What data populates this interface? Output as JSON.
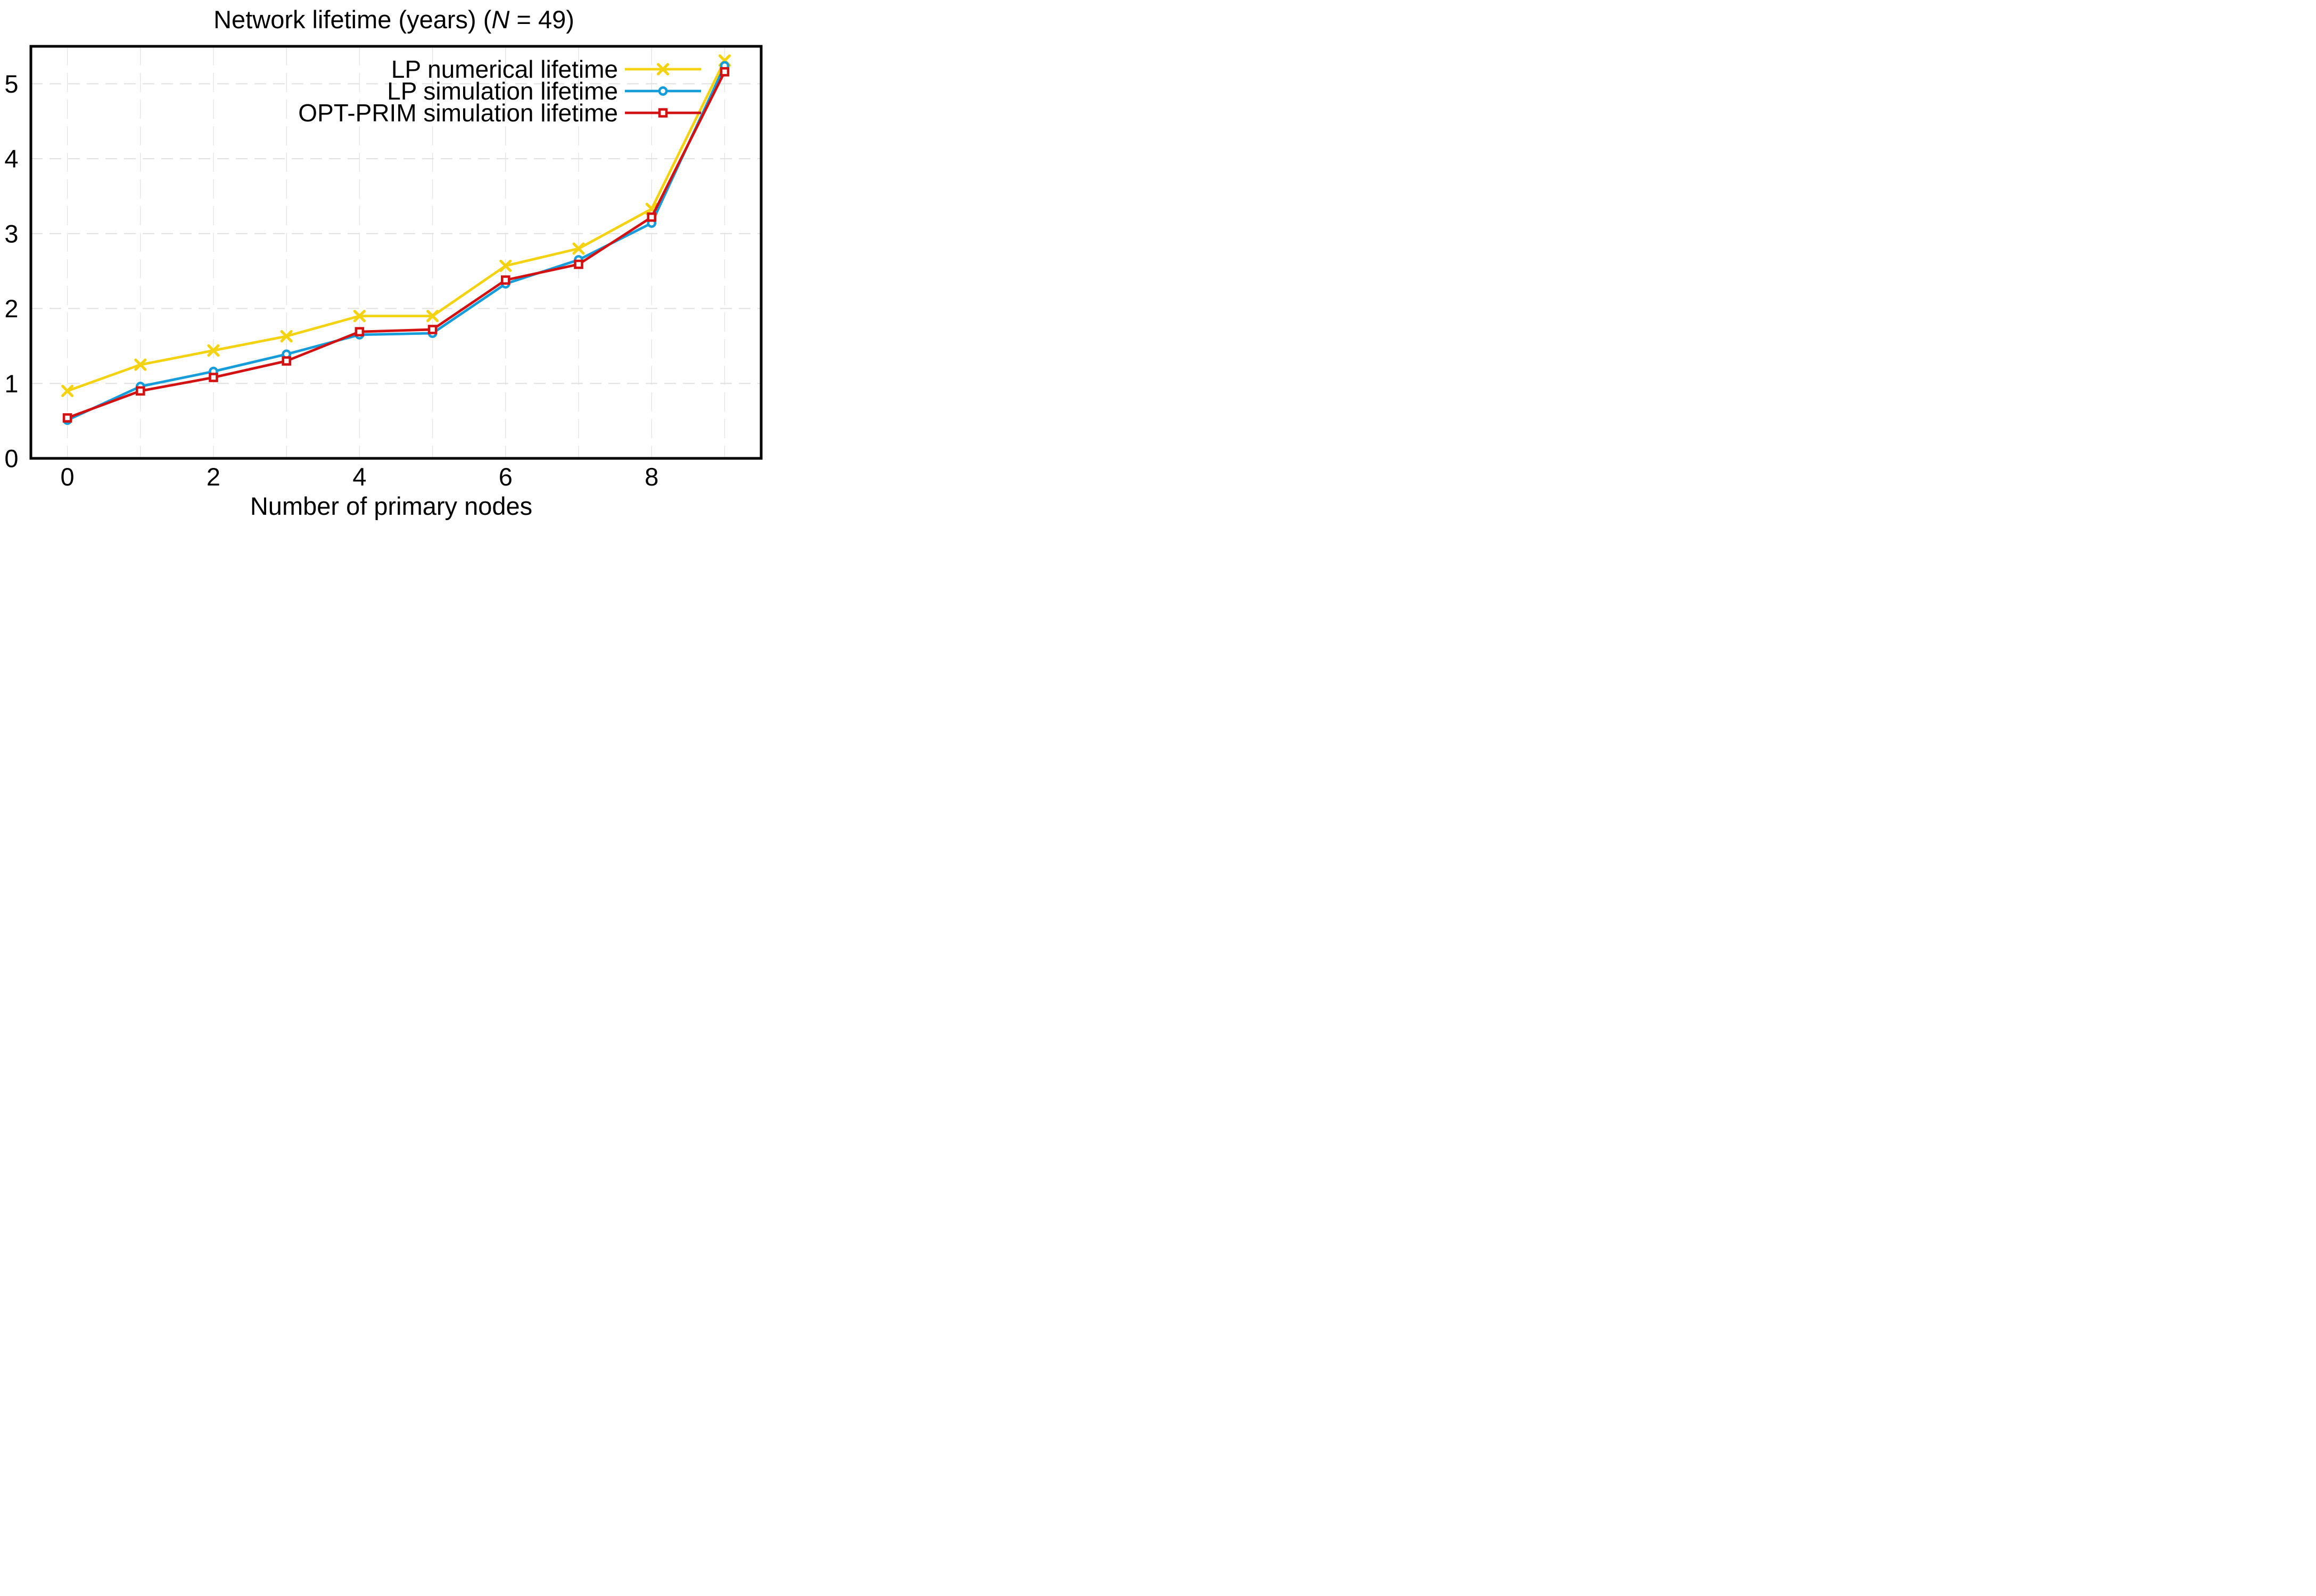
{
  "title": {
    "prefix": "Network lifetime (years) (",
    "n": "N",
    "suffix": " = 49)"
  },
  "chart_data": {
    "type": "line",
    "title": "Network lifetime (years) (N = 49)",
    "xlabel": "Number of primary nodes",
    "ylabel": "",
    "x": [
      0,
      1,
      2,
      3,
      4,
      5,
      6,
      7,
      8,
      9
    ],
    "series": [
      {
        "name": "LP numerical lifetime",
        "color": "#F3D211",
        "marker": "x",
        "values": [
          0.9,
          1.25,
          1.44,
          1.63,
          1.9,
          1.9,
          2.57,
          2.8,
          3.33,
          5.31
        ]
      },
      {
        "name": "LP simulation lifetime",
        "color": "#169CD8",
        "marker": "circle",
        "values": [
          0.51,
          0.96,
          1.16,
          1.39,
          1.65,
          1.67,
          2.33,
          2.65,
          3.14,
          5.24
        ]
      },
      {
        "name": "OPT-PRIM simulation lifetime",
        "color": "#D21212",
        "marker": "square",
        "values": [
          0.54,
          0.9,
          1.08,
          1.3,
          1.69,
          1.72,
          2.38,
          2.59,
          3.22,
          5.16
        ]
      }
    ],
    "xlim": [
      -0.5,
      9.5
    ],
    "ylim": [
      0,
      5.5
    ],
    "x_ticks": [
      0,
      2,
      4,
      6,
      8
    ],
    "y_ticks": [
      0,
      1,
      2,
      3,
      4,
      5
    ],
    "x_gridlines": [
      0,
      1,
      2,
      3,
      4,
      5,
      6,
      7,
      8,
      9
    ],
    "y_gridlines": [
      1,
      2,
      3,
      4,
      5
    ],
    "grid": "dashed",
    "legend_position": "top-right"
  },
  "colors": {
    "background": "#ffffff",
    "axis": "#000000",
    "grid_horizontal": "#e0e0e0",
    "grid_vertical": "#e4e4e4"
  }
}
